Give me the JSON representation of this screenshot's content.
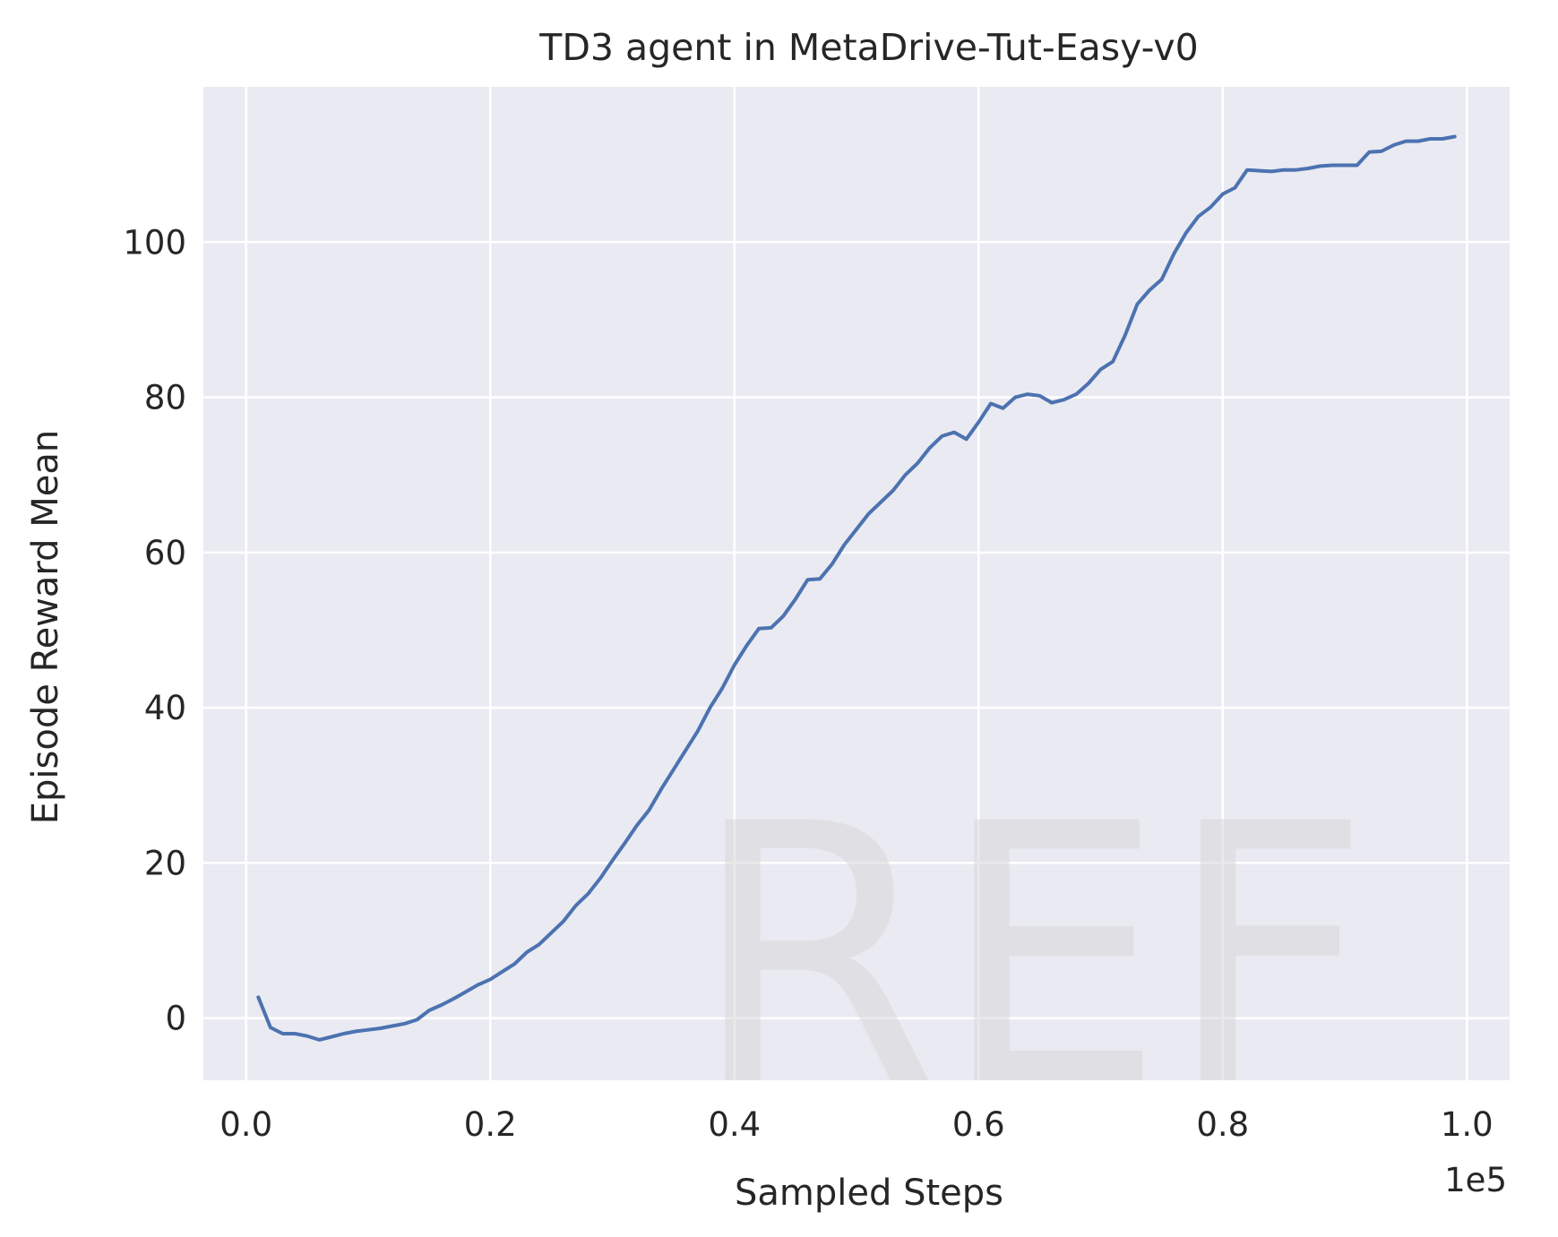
{
  "chart_data": {
    "type": "line",
    "title": "TD3 agent in MetaDrive-Tut-Easy-v0",
    "xlabel": "Sampled Steps",
    "ylabel": "Episode Reward Mean",
    "x_offset_label": "1e5",
    "watermark": "REF",
    "xlim": [
      -0.035,
      1.035
    ],
    "ylim": [
      -8,
      120
    ],
    "xticks": [
      0.0,
      0.2,
      0.4,
      0.6,
      0.8,
      1.0
    ],
    "xtick_labels": [
      "0.0",
      "0.2",
      "0.4",
      "0.6",
      "0.8",
      "1.0"
    ],
    "yticks": [
      0,
      20,
      40,
      60,
      80,
      100
    ],
    "ytick_labels": [
      "0",
      "20",
      "40",
      "60",
      "80",
      "100"
    ],
    "grid": true,
    "background": "#eaeaf2",
    "series": [
      {
        "color": "#4c72b0",
        "x": [
          0.01,
          0.02,
          0.03,
          0.04,
          0.05,
          0.06,
          0.07,
          0.08,
          0.09,
          0.1,
          0.11,
          0.12,
          0.13,
          0.14,
          0.15,
          0.16,
          0.17,
          0.18,
          0.19,
          0.2,
          0.21,
          0.22,
          0.23,
          0.24,
          0.25,
          0.26,
          0.27,
          0.28,
          0.29,
          0.3,
          0.31,
          0.32,
          0.33,
          0.34,
          0.35,
          0.36,
          0.37,
          0.38,
          0.39,
          0.4,
          0.41,
          0.42,
          0.43,
          0.44,
          0.45,
          0.46,
          0.47,
          0.48,
          0.49,
          0.5,
          0.51,
          0.52,
          0.53,
          0.54,
          0.55,
          0.56,
          0.57,
          0.58,
          0.59,
          0.6,
          0.61,
          0.62,
          0.63,
          0.64,
          0.65,
          0.66,
          0.67,
          0.68,
          0.69,
          0.7,
          0.71,
          0.72,
          0.73,
          0.74,
          0.75,
          0.76,
          0.77,
          0.78,
          0.79,
          0.8,
          0.81,
          0.82,
          0.83,
          0.84,
          0.85,
          0.86,
          0.87,
          0.88,
          0.89,
          0.9,
          0.91,
          0.92,
          0.93,
          0.94,
          0.95,
          0.96,
          0.97,
          0.98,
          0.99
        ],
        "y": [
          2.7,
          -1.2,
          -2.0,
          -2.0,
          -2.3,
          -2.8,
          -2.4,
          -2.0,
          -1.7,
          -1.5,
          -1.3,
          -1.0,
          -0.7,
          -0.2,
          1.0,
          1.7,
          2.5,
          3.4,
          4.3,
          5.0,
          6.0,
          7.0,
          8.5,
          9.5,
          11.0,
          12.5,
          14.5,
          16.0,
          18.0,
          20.3,
          22.5,
          24.8,
          26.8,
          29.5,
          32.0,
          34.5,
          37.0,
          40.0,
          42.5,
          45.5,
          48.0,
          50.2,
          50.3,
          51.8,
          54.0,
          56.5,
          56.6,
          58.5,
          61.0,
          63.0,
          65.0,
          66.5,
          68.0,
          70.0,
          71.5,
          73.5,
          75.0,
          75.5,
          74.6,
          76.8,
          79.2,
          78.6,
          80.0,
          80.4,
          80.2,
          79.3,
          79.7,
          80.4,
          81.8,
          83.6,
          84.6,
          88.0,
          92.0,
          93.8,
          95.2,
          98.5,
          101.2,
          103.3,
          104.5,
          106.2,
          107.0,
          109.3,
          109.2,
          109.1,
          109.3,
          109.3,
          109.5,
          109.8,
          109.9,
          109.9,
          109.9,
          111.6,
          111.7,
          112.5,
          113.0,
          113.0,
          113.3,
          113.3,
          113.6
        ]
      }
    ]
  }
}
